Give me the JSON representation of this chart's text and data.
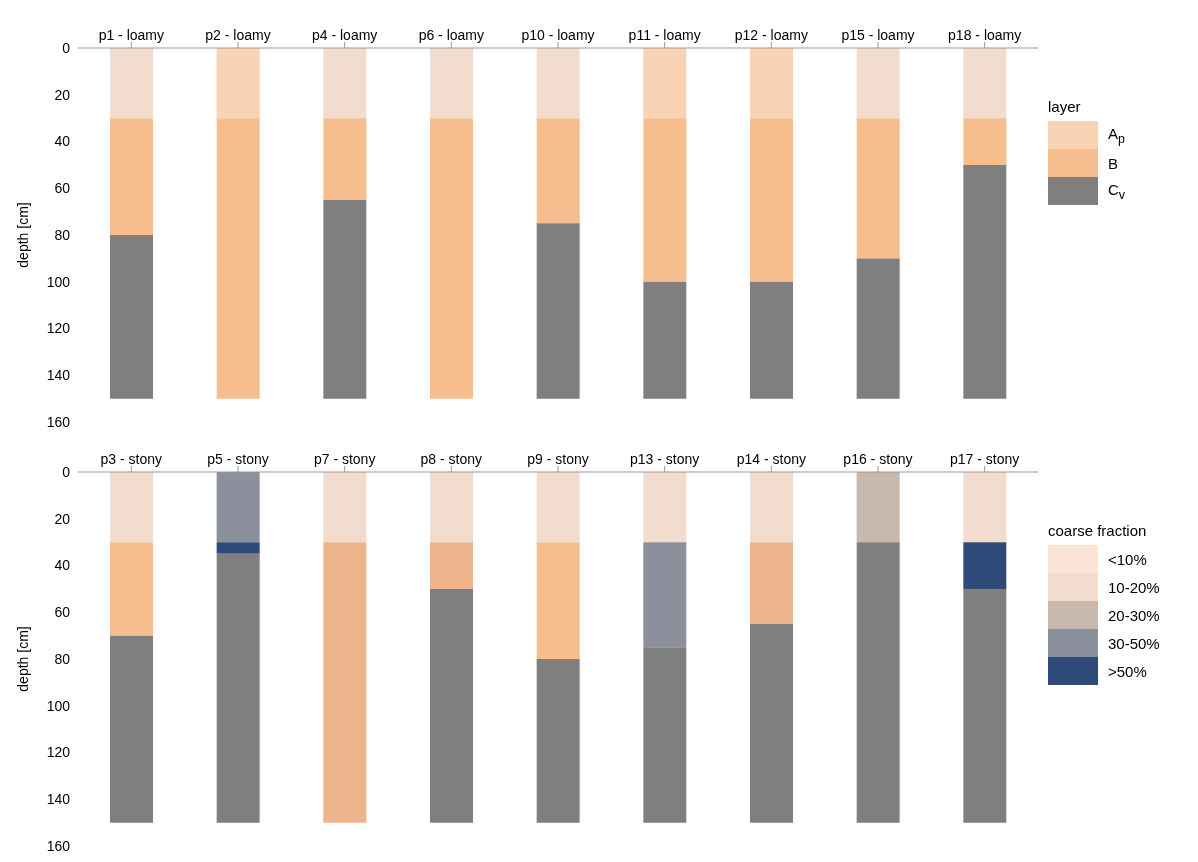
{
  "chart_data": [
    {
      "type": "bar",
      "stacked": true,
      "categories": [
        "p1 - loamy",
        "p2 - loamy",
        "p4 - loamy",
        "p6 - loamy",
        "p10 - loamy",
        "p11 - loamy",
        "p12 - loamy",
        "p15 - loamy",
        "p18 - loamy"
      ],
      "ylabel": "depth [cm]",
      "ylim": [
        160,
        0
      ],
      "yticks": [
        0,
        20,
        40,
        60,
        80,
        100,
        120,
        140,
        160
      ],
      "legend": "right",
      "legend_title": "layer",
      "series": [
        {
          "name": "A$_{p}$",
          "color": "#fad3b4",
          "colors": [
            "#f2dccd",
            "#fad3b4",
            "#f2dccd",
            "#f2dccd",
            "#f2dccd",
            "#fad3b4",
            "#fad3b4",
            "#f2dccd",
            "#f2dccd"
          ],
          "values": [
            30,
            30,
            30,
            30,
            30,
            30,
            30,
            30,
            30
          ]
        },
        {
          "name": "B",
          "color": "#f6be8f",
          "values": [
            50,
            120,
            35,
            120,
            45,
            70,
            70,
            60,
            20
          ]
        },
        {
          "name": "C$_{v}$",
          "color": "#7f7f7f",
          "values": [
            70,
            null,
            85,
            null,
            75,
            50,
            50,
            60,
            100
          ]
        }
      ]
    },
    {
      "type": "bar",
      "stacked": true,
      "categories": [
        "p3 - stony",
        "p5 - stony",
        "p7 - stony",
        "p8 - stony",
        "p9 - stony",
        "p13 - stony",
        "p14 - stony",
        "p16 - stony",
        "p17 - stony"
      ],
      "ylabel": "depth [cm]",
      "ylim": [
        160,
        0
      ],
      "yticks": [
        0,
        20,
        40,
        60,
        80,
        100,
        120,
        140,
        160
      ],
      "legend": "right",
      "legend_title": "coarse fraction",
      "series": [
        {
          "color": "#f2dccd",
          "colors": [
            "#f2dccd",
            "#8c8f9c",
            "#f2dccd",
            "#f2dccd",
            "#f2dccd",
            "#f2dccd",
            "#f2dccd",
            "#c9b8ac",
            "#f2dccd"
          ],
          "values": [
            30,
            30,
            30,
            30,
            30,
            30,
            30,
            30,
            30
          ]
        },
        {
          "color": "#f6be8f",
          "colors": [
            "#f6be8f",
            "#2e4a78",
            "#eeb58d",
            "#eeb58d",
            "#f6be8f",
            "#8c8f9c",
            "#eeb58d",
            null,
            "#2e4a78"
          ],
          "values": [
            40,
            5,
            120,
            20,
            50,
            45,
            35,
            null,
            20
          ]
        },
        {
          "color": "#7f7f7f",
          "values": [
            80,
            115,
            null,
            100,
            70,
            75,
            85,
            120,
            100
          ]
        },
        {
          "name": "<10%",
          "color": "#fbe5d6",
          "values": [
            null,
            null,
            null,
            null,
            null,
            null,
            null,
            null,
            null
          ]
        },
        {
          "name": "10-20%",
          "color": "#f2dccd",
          "values": [
            null,
            null,
            null,
            null,
            null,
            null,
            null,
            null,
            null
          ]
        },
        {
          "name": "20-30%",
          "color": "#c9b8ac",
          "values": [
            null,
            null,
            null,
            null,
            null,
            null,
            null,
            null,
            null
          ]
        },
        {
          "name": "30-50%",
          "color": "#8c8f9c",
          "values": [
            null,
            null,
            null,
            null,
            null,
            null,
            null,
            null,
            null
          ]
        },
        {
          "name": ">50%",
          "color": "#2e4a78",
          "values": [
            null,
            null,
            null,
            null,
            null,
            null,
            null,
            null,
            null
          ]
        }
      ]
    }
  ]
}
